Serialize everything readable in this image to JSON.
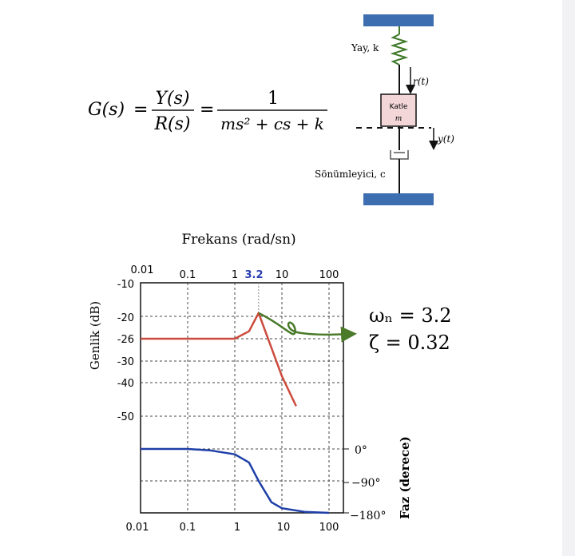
{
  "equation": {
    "lhs": "G(s)",
    "eq1": "=",
    "num1": "Y(s)",
    "den1": "R(s)",
    "eq2": "=",
    "num2": "1",
    "den2": "ms² + cs + k"
  },
  "mechanism": {
    "spring_label": "Yay, k",
    "mass_label": "Katle",
    "mass_symbol": "m",
    "input_label": "r(t)",
    "output_label": "y(t)",
    "damper_label": "Sönümleyici, c",
    "colors": {
      "wall": "#3d6eb0",
      "spring": "#3f7a2a",
      "mass": "#f2d6d8"
    }
  },
  "bode": {
    "top_axis_title": "Frekans (rad/sn)",
    "top_ticks": [
      "0.01",
      "0.1",
      "1",
      "3.2",
      "10",
      "100"
    ],
    "bottom_ticks": [
      "0.01",
      "0.1",
      "1",
      "10",
      "100"
    ],
    "magnitude_axis_title": "Genlik (dB)",
    "magnitude_ticks": [
      "-10",
      "-20",
      "-26",
      "-30",
      "-40",
      "-50"
    ],
    "phase_axis_title": "Faz (derece)",
    "phase_ticks": [
      "0°",
      "−90°",
      "−180°"
    ],
    "annotation_wn": "ωₙ = 3.2",
    "annotation_zeta": "ζ = 0.32",
    "colors": {
      "magnitude": "#cc4a3c",
      "phase": "#1e3fa8",
      "annotation_arrow": "#4a7a2a",
      "highlight_tick": "#2a3fb0"
    }
  },
  "chart_data": {
    "type": "line",
    "xscale": "log",
    "xlim": [
      0.01,
      100
    ],
    "natural_frequency": 3.2,
    "damping_ratio": 0.32,
    "series": [
      {
        "x": [
          0.01,
          0.1,
          1,
          2,
          3.2,
          10,
          20
        ],
        "values": [
          -26,
          -26,
          -26,
          -24,
          -19,
          -37,
          -47
        ]
      },
      {
        "x": [
          0.01,
          0.1,
          0.3,
          1,
          2,
          3.2,
          6,
          10,
          30,
          100
        ],
        "values": [
          0,
          0,
          -4,
          -15,
          -38,
          -90,
          -150,
          -167,
          -177,
          -180
        ]
      }
    ]
  }
}
